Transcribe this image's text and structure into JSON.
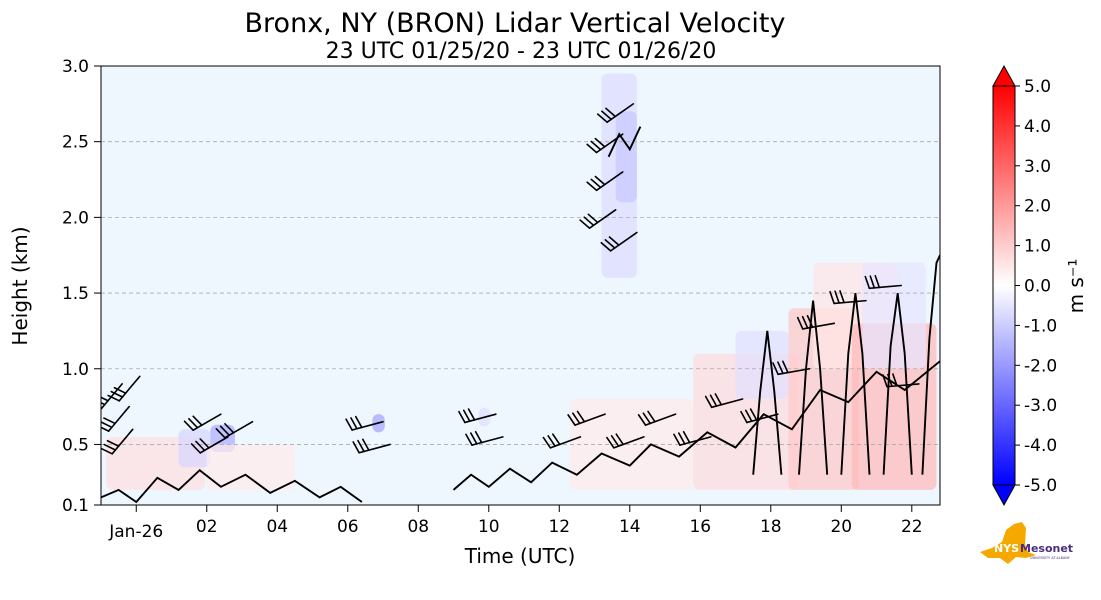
{
  "chart_data": {
    "type": "heatmap",
    "title": "Bronx, NY (BRON) Lidar Vertical Velocity",
    "subtitle": "23 UTC 01/25/20 - 23 UTC 01/26/20",
    "xlabel": "Time (UTC)",
    "ylabel": "Height (km)",
    "xlim": [
      23.0,
      46.8
    ],
    "ylim": [
      0.1,
      3.0
    ],
    "x_ticks": [
      {
        "x": 24,
        "label": "Jan-26"
      },
      {
        "x": 26,
        "label": "02"
      },
      {
        "x": 28,
        "label": "04"
      },
      {
        "x": 30,
        "label": "06"
      },
      {
        "x": 32,
        "label": "08"
      },
      {
        "x": 34,
        "label": "10"
      },
      {
        "x": 36,
        "label": "12"
      },
      {
        "x": 38,
        "label": "14"
      },
      {
        "x": 40,
        "label": "16"
      },
      {
        "x": 42,
        "label": "18"
      },
      {
        "x": 44,
        "label": "20"
      },
      {
        "x": 46,
        "label": "22"
      }
    ],
    "y_ticks": [
      {
        "y": 0.1,
        "label": "0.1"
      },
      {
        "y": 0.5,
        "label": "0.5"
      },
      {
        "y": 1.0,
        "label": "1.0"
      },
      {
        "y": 1.5,
        "label": "1.5"
      },
      {
        "y": 2.0,
        "label": "2.0"
      },
      {
        "y": 2.5,
        "label": "2.5"
      },
      {
        "y": 3.0,
        "label": "3.0"
      }
    ],
    "grid": "horizontal dashed",
    "background_color": "#eef6fe",
    "colorbar": {
      "label": "m s⁻¹",
      "range": [
        -5.0,
        5.0
      ],
      "extend": "both",
      "colormap": "bwr",
      "tick_labels": [
        "5.0",
        "4.0",
        "3.0",
        "2.0",
        "1.0",
        "0.0",
        "-1.0",
        "-2.0",
        "-3.0",
        "-4.0",
        "-5.0"
      ],
      "tick_values": [
        5,
        4,
        3,
        2,
        1,
        0,
        -1,
        -2,
        -3,
        -4,
        -5
      ]
    },
    "velocity_patches": [
      {
        "x": 23.15,
        "y": 0.2,
        "w": 2.8,
        "h": 0.35,
        "v": 0.6
      },
      {
        "x": 26.1,
        "y": 0.45,
        "w": 0.7,
        "h": 0.18,
        "v": -1.6
      },
      {
        "x": 25.2,
        "y": 0.35,
        "w": 0.9,
        "h": 0.25,
        "v": -0.8
      },
      {
        "x": 26.0,
        "y": 0.2,
        "w": 2.5,
        "h": 0.3,
        "v": 0.4
      },
      {
        "x": 30.7,
        "y": 0.58,
        "w": 0.35,
        "h": 0.12,
        "v": -1.8
      },
      {
        "x": 33.7,
        "y": 0.62,
        "w": 0.35,
        "h": 0.12,
        "v": -0.6
      },
      {
        "x": 37.2,
        "y": 1.6,
        "w": 1.0,
        "h": 1.35,
        "v": -0.7
      },
      {
        "x": 37.6,
        "y": 2.1,
        "w": 0.6,
        "h": 0.6,
        "v": -1.1
      },
      {
        "x": 36.3,
        "y": 0.2,
        "w": 3.5,
        "h": 0.6,
        "v": 0.4
      },
      {
        "x": 39.8,
        "y": 0.2,
        "w": 3.0,
        "h": 0.9,
        "v": 0.7
      },
      {
        "x": 42.5,
        "y": 0.2,
        "w": 2.0,
        "h": 1.2,
        "v": 1.1
      },
      {
        "x": 43.2,
        "y": 1.0,
        "w": 2.4,
        "h": 0.7,
        "v": 0.5
      },
      {
        "x": 44.3,
        "y": 0.2,
        "w": 2.4,
        "h": 1.1,
        "v": 1.4
      },
      {
        "x": 44.6,
        "y": 1.0,
        "w": 1.8,
        "h": 0.7,
        "v": -0.5
      },
      {
        "x": 41.0,
        "y": 0.8,
        "w": 1.5,
        "h": 0.45,
        "v": -0.6
      }
    ],
    "wind_barbs": [
      {
        "t": 23.6,
        "h": 0.9,
        "d": 320
      },
      {
        "t": 23.8,
        "h": 0.75,
        "d": 320
      },
      {
        "t": 23.9,
        "h": 0.6,
        "d": 320
      },
      {
        "t": 24.1,
        "h": 0.95,
        "d": 320
      },
      {
        "t": 26.4,
        "h": 0.7,
        "d": 300
      },
      {
        "t": 26.6,
        "h": 0.55,
        "d": 300
      },
      {
        "t": 27.3,
        "h": 0.65,
        "d": 300
      },
      {
        "t": 31.0,
        "h": 0.65,
        "d": 285
      },
      {
        "t": 31.2,
        "h": 0.5,
        "d": 285
      },
      {
        "t": 34.2,
        "h": 0.7,
        "d": 285
      },
      {
        "t": 34.4,
        "h": 0.55,
        "d": 285
      },
      {
        "t": 37.6,
        "h": 2.05,
        "d": 305
      },
      {
        "t": 37.8,
        "h": 2.3,
        "d": 305
      },
      {
        "t": 37.8,
        "h": 2.55,
        "d": 305
      },
      {
        "t": 38.1,
        "h": 2.75,
        "d": 305
      },
      {
        "t": 38.2,
        "h": 1.9,
        "d": 305
      },
      {
        "t": 36.6,
        "h": 0.55,
        "d": 290
      },
      {
        "t": 37.3,
        "h": 0.7,
        "d": 290
      },
      {
        "t": 38.4,
        "h": 0.55,
        "d": 290
      },
      {
        "t": 39.3,
        "h": 0.7,
        "d": 290
      },
      {
        "t": 40.3,
        "h": 0.55,
        "d": 285
      },
      {
        "t": 41.2,
        "h": 0.8,
        "d": 285
      },
      {
        "t": 42.2,
        "h": 0.7,
        "d": 285
      },
      {
        "t": 43.1,
        "h": 1.0,
        "d": 280
      },
      {
        "t": 43.8,
        "h": 1.3,
        "d": 280
      },
      {
        "t": 44.7,
        "h": 1.45,
        "d": 275
      },
      {
        "t": 45.7,
        "h": 1.55,
        "d": 275
      },
      {
        "t": 46.2,
        "h": 0.9,
        "d": 275
      }
    ],
    "contours": [
      {
        "pts": [
          [
            23.0,
            0.15
          ],
          [
            23.5,
            0.2
          ],
          [
            24.0,
            0.12
          ],
          [
            24.6,
            0.28
          ],
          [
            25.2,
            0.2
          ],
          [
            25.8,
            0.33
          ],
          [
            26.4,
            0.22
          ],
          [
            27.1,
            0.3
          ],
          [
            27.8,
            0.18
          ],
          [
            28.5,
            0.26
          ],
          [
            29.2,
            0.15
          ],
          [
            29.8,
            0.22
          ],
          [
            30.4,
            0.12
          ]
        ]
      },
      {
        "pts": [
          [
            33.0,
            0.2
          ],
          [
            33.5,
            0.3
          ],
          [
            34.0,
            0.22
          ],
          [
            34.6,
            0.34
          ],
          [
            35.2,
            0.25
          ],
          [
            35.8,
            0.38
          ],
          [
            36.5,
            0.3
          ],
          [
            37.2,
            0.44
          ],
          [
            38.0,
            0.36
          ],
          [
            38.6,
            0.5
          ],
          [
            39.4,
            0.42
          ],
          [
            40.2,
            0.58
          ],
          [
            41.0,
            0.48
          ],
          [
            41.8,
            0.7
          ],
          [
            42.6,
            0.6
          ],
          [
            43.4,
            0.86
          ],
          [
            44.2,
            0.78
          ],
          [
            45.0,
            0.98
          ],
          [
            45.8,
            0.86
          ],
          [
            46.8,
            1.05
          ]
        ]
      },
      {
        "pts": [
          [
            41.5,
            0.3
          ],
          [
            41.7,
            0.85
          ],
          [
            41.9,
            1.25
          ],
          [
            42.1,
            0.85
          ],
          [
            42.3,
            0.3
          ]
        ]
      },
      {
        "pts": [
          [
            42.8,
            0.3
          ],
          [
            43.0,
            1.0
          ],
          [
            43.2,
            1.45
          ],
          [
            43.4,
            1.0
          ],
          [
            43.6,
            0.3
          ]
        ]
      },
      {
        "pts": [
          [
            44.0,
            0.3
          ],
          [
            44.2,
            1.1
          ],
          [
            44.4,
            1.5
          ],
          [
            44.6,
            1.1
          ],
          [
            44.8,
            0.3
          ]
        ]
      },
      {
        "pts": [
          [
            45.2,
            0.3
          ],
          [
            45.4,
            1.15
          ],
          [
            45.6,
            1.5
          ],
          [
            45.8,
            1.1
          ],
          [
            46.0,
            0.3
          ]
        ]
      },
      {
        "pts": [
          [
            46.3,
            0.3
          ],
          [
            46.5,
            1.2
          ],
          [
            46.7,
            1.7
          ],
          [
            46.8,
            1.75
          ]
        ]
      },
      {
        "pts": [
          [
            37.4,
            2.4
          ],
          [
            37.7,
            2.55
          ],
          [
            38.0,
            2.45
          ],
          [
            38.3,
            2.6
          ]
        ]
      }
    ]
  },
  "logo": {
    "text_top": "NYS",
    "text_main": "Mesonet",
    "text_sub": "UNIVERSITY AT ALBANY",
    "colors": {
      "state_shape": "#f5a800",
      "text_dark": "#4b2e83"
    }
  }
}
